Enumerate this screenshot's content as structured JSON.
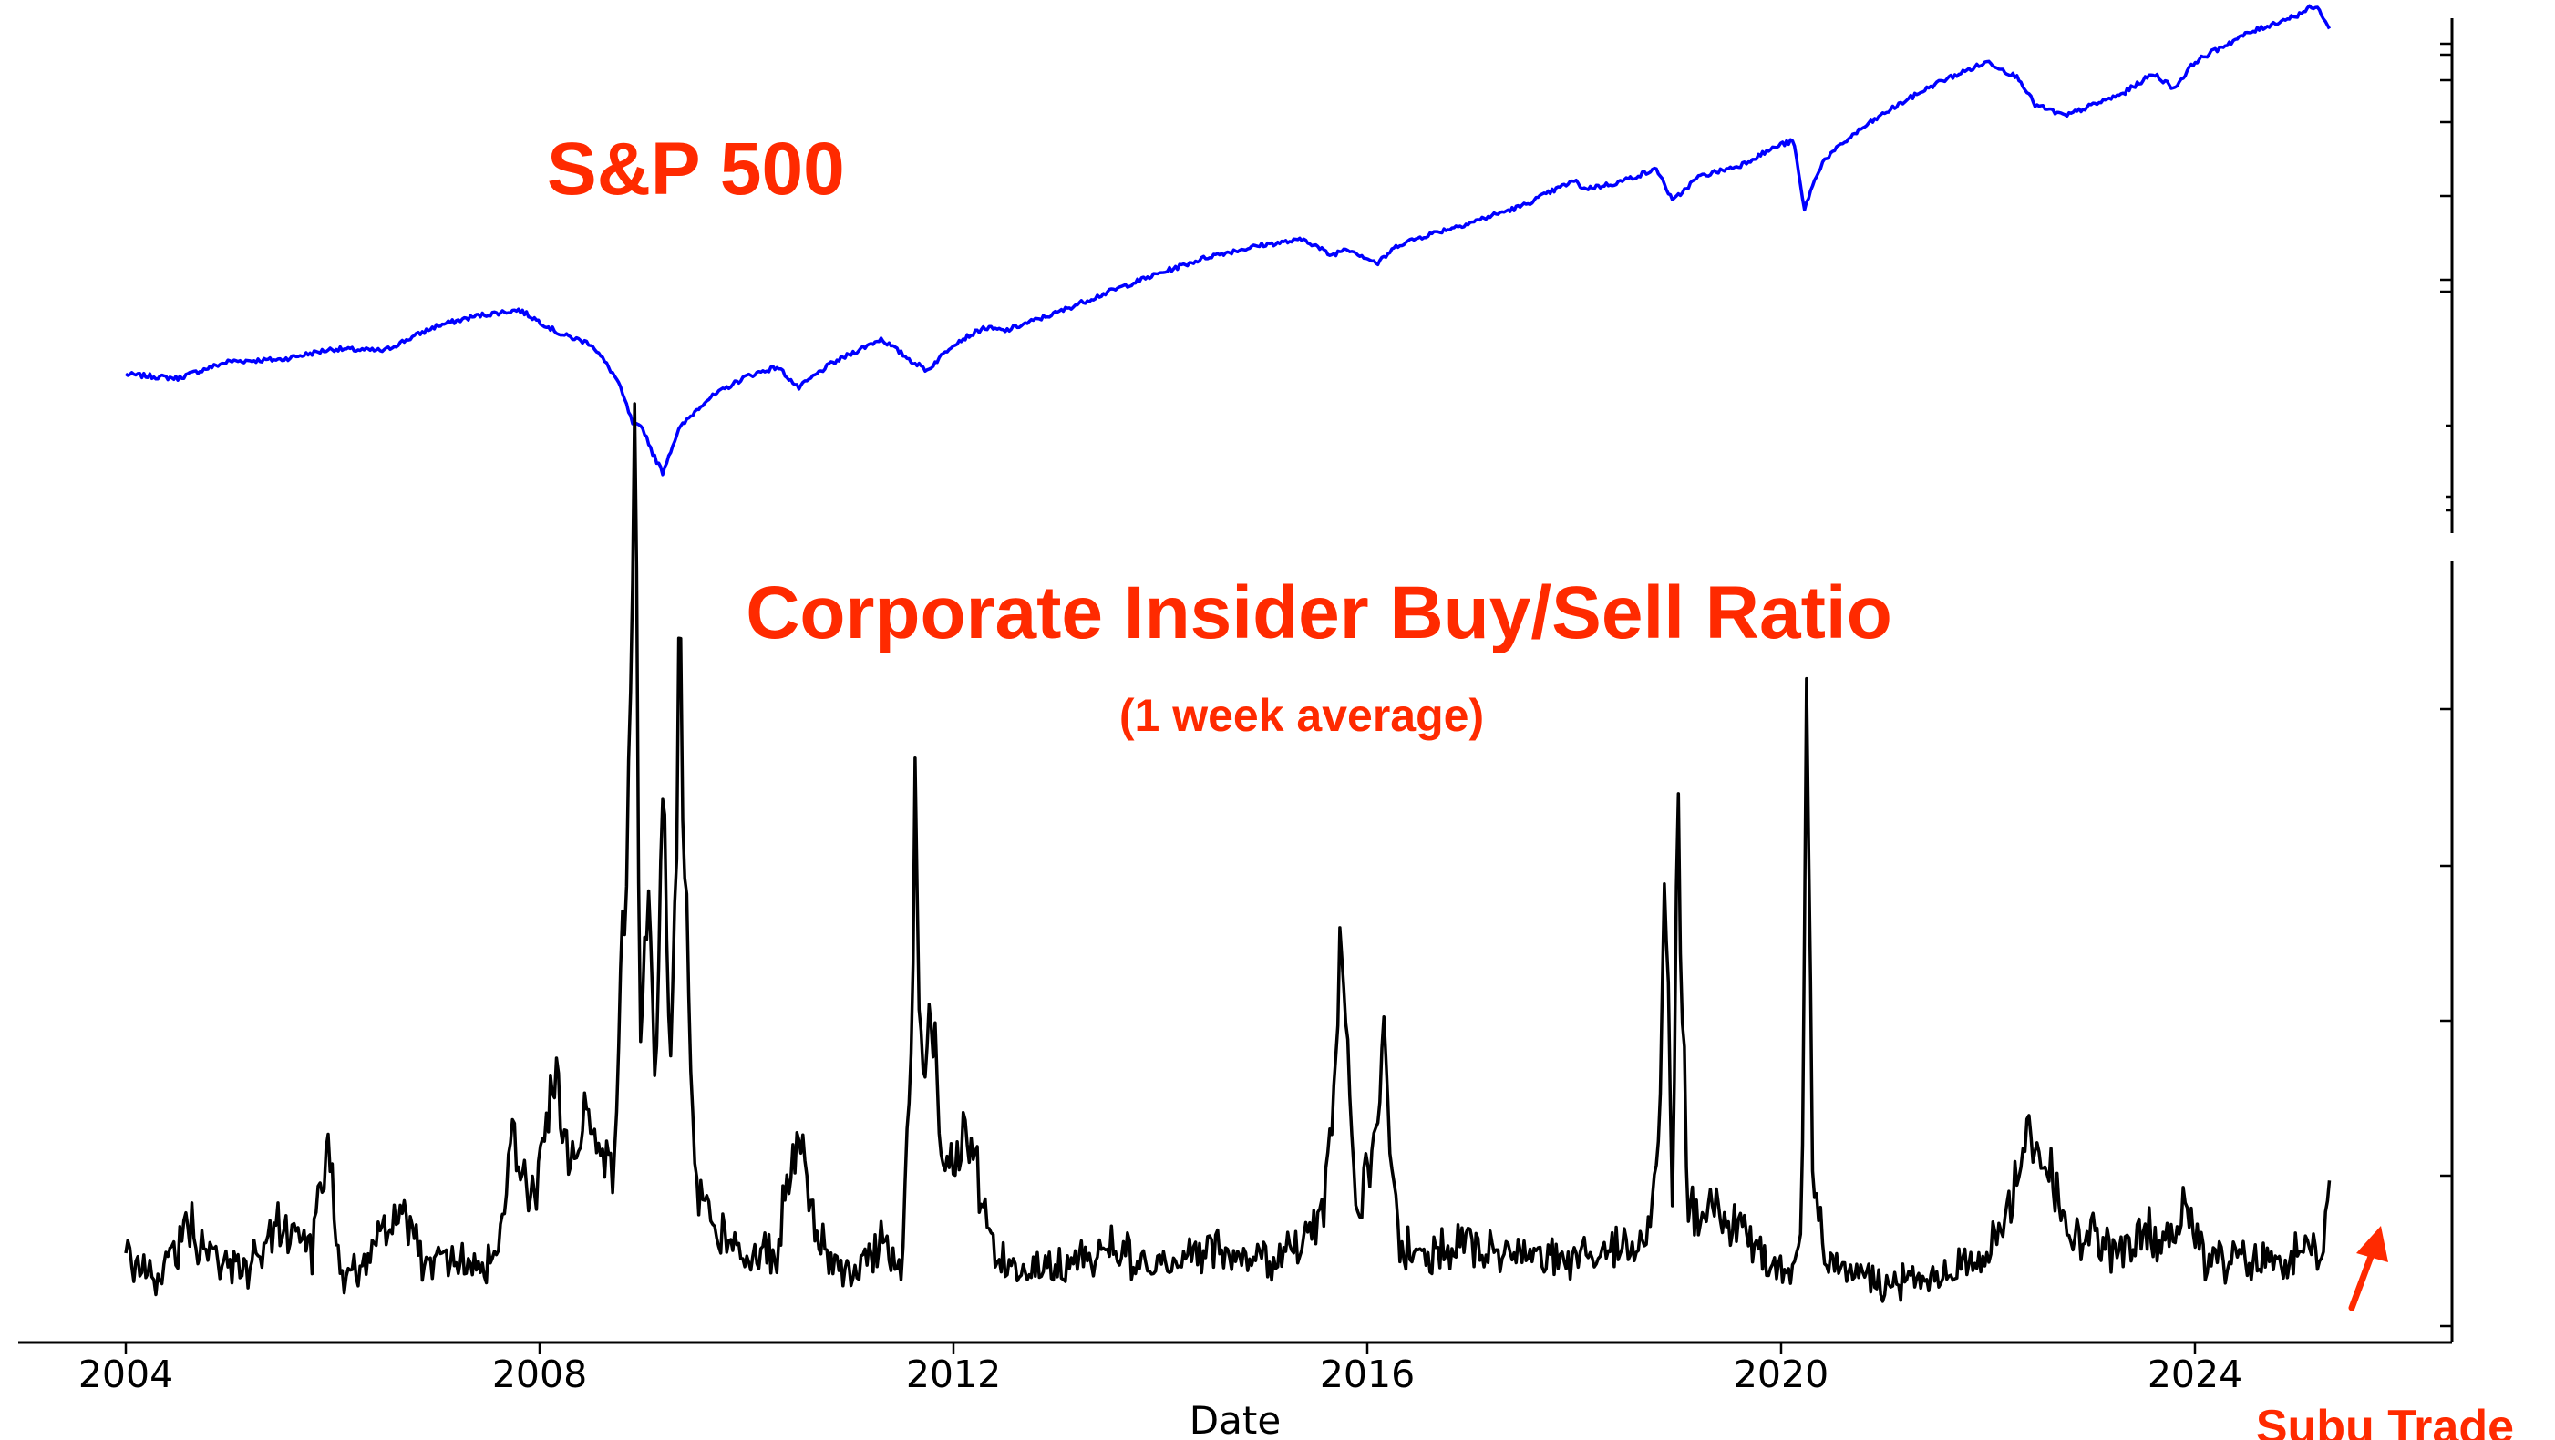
{
  "colors": {
    "title": "#ff2a00",
    "sp500_line": "#0000ff",
    "ratio_line": "#000000",
    "axis": "#000000"
  },
  "labels": {
    "sp500_title": "S&P 500",
    "ratio_title": "Corporate Insider Buy/Sell Ratio",
    "ratio_subtitle": "(1 week average)",
    "brand": "Subu Trade"
  },
  "chart_data": [
    {
      "type": "line",
      "title": "S&P 500",
      "y_scale": "log",
      "series": [
        {
          "name": "S&P 500",
          "x": [
            2004.0,
            2004.5,
            2005.0,
            2005.5,
            2006.0,
            2006.5,
            2007.0,
            2007.4,
            2007.8,
            2008.2,
            2008.5,
            2008.75,
            2008.9,
            2009.0,
            2009.1,
            2009.19,
            2009.35,
            2009.6,
            2010.0,
            2010.3,
            2010.5,
            2010.8,
            2011.3,
            2011.6,
            2011.75,
            2012.0,
            2012.3,
            2012.5,
            2013.0,
            2013.5,
            2014.0,
            2014.5,
            2015.0,
            2015.4,
            2015.65,
            2015.8,
            2016.1,
            2016.3,
            2016.6,
            2017.0,
            2017.5,
            2018.0,
            2018.1,
            2018.4,
            2018.8,
            2018.95,
            2019.2,
            2019.6,
            2020.0,
            2020.12,
            2020.22,
            2020.4,
            2020.7,
            2021.0,
            2021.5,
            2022.0,
            2022.3,
            2022.45,
            2022.75,
            2022.95,
            2023.3,
            2023.6,
            2023.8,
            2024.0,
            2024.5,
            2025.0,
            2025.12,
            2025.2,
            2025.3
          ],
          "y": [
            1130,
            1110,
            1200,
            1210,
            1270,
            1260,
            1410,
            1480,
            1520,
            1360,
            1300,
            1100,
            900,
            880,
            780,
            720,
            880,
            1000,
            1120,
            1170,
            1060,
            1180,
            1330,
            1200,
            1150,
            1300,
            1400,
            1380,
            1500,
            1650,
            1800,
            1950,
            2050,
            2100,
            1950,
            2020,
            1880,
            2050,
            2150,
            2270,
            2450,
            2750,
            2650,
            2720,
            2900,
            2500,
            2800,
            2950,
            3250,
            3300,
            2400,
            3000,
            3400,
            3750,
            4300,
            4750,
            4400,
            3900,
            3700,
            3850,
            4100,
            4500,
            4200,
            4750,
            5400,
            5900,
            6100,
            6050,
            5500
          ]
        }
      ]
    },
    {
      "type": "line",
      "title": "Corporate Insider Buy/Sell Ratio",
      "subtitle": "(1 week average)",
      "xlabel": "Date",
      "x_ticks": [
        2004,
        2008,
        2012,
        2016,
        2020,
        2024
      ],
      "series": [
        {
          "name": "Corporate Insider Buy/Sell Ratio",
          "x": [
            2004.0,
            2004.3,
            2004.6,
            2004.9,
            2005.2,
            2005.5,
            2005.8,
            2005.95,
            2006.1,
            2006.4,
            2006.6,
            2006.9,
            2007.2,
            2007.45,
            2007.6,
            2007.75,
            2007.9,
            2008.05,
            2008.15,
            2008.3,
            2008.45,
            2008.6,
            2008.72,
            2008.8,
            2008.86,
            2008.92,
            2008.98,
            2009.05,
            2009.12,
            2009.2,
            2009.26,
            2009.35,
            2009.5,
            2009.7,
            2010.0,
            2010.3,
            2010.5,
            2010.65,
            2010.8,
            2011.0,
            2011.3,
            2011.5,
            2011.6,
            2011.63,
            2011.7,
            2011.78,
            2011.9,
            2012.1,
            2012.4,
            2012.6,
            2013.0,
            2013.5,
            2014.0,
            2014.5,
            2015.0,
            2015.4,
            2015.6,
            2015.65,
            2015.75,
            2015.9,
            2016.05,
            2016.15,
            2016.3,
            2016.6,
            2017.0,
            2017.5,
            2018.0,
            2018.4,
            2018.7,
            2018.82,
            2018.88,
            2018.95,
            2019.0,
            2019.1,
            2019.3,
            2019.6,
            2019.9,
            2020.1,
            2020.2,
            2020.25,
            2020.3,
            2020.45,
            2020.7,
            2021.0,
            2021.5,
            2021.8,
            2022.0,
            2022.2,
            2022.4,
            2022.6,
            2022.8,
            2023.0,
            2023.3,
            2023.5,
            2023.7,
            2023.9,
            2024.1,
            2024.4,
            2024.7,
            2025.0,
            2025.2,
            2025.3
          ],
          "y": [
            0.48,
            0.32,
            0.68,
            0.45,
            0.4,
            0.72,
            0.52,
            1.18,
            0.35,
            0.52,
            0.8,
            0.42,
            0.48,
            0.38,
            0.55,
            1.28,
            0.75,
            1.25,
            1.6,
            1.0,
            1.4,
            1.25,
            0.9,
            2.5,
            3.35,
            5.75,
            1.8,
            2.7,
            1.5,
            3.4,
            1.4,
            4.3,
            0.9,
            0.7,
            0.45,
            0.55,
            1.3,
            0.65,
            0.45,
            0.4,
            0.6,
            0.3,
            2.1,
            3.4,
            1.5,
            2.25,
            0.9,
            1.25,
            0.55,
            0.45,
            0.4,
            0.55,
            0.4,
            0.55,
            0.45,
            0.55,
            0.9,
            1.4,
            2.45,
            0.85,
            1.15,
            1.85,
            0.55,
            0.5,
            0.55,
            0.5,
            0.45,
            0.55,
            0.55,
            1.3,
            2.95,
            0.8,
            3.3,
            0.75,
            0.85,
            0.65,
            0.45,
            0.35,
            0.7,
            4.85,
            0.85,
            0.45,
            0.4,
            0.3,
            0.35,
            0.45,
            0.5,
            0.75,
            1.3,
            1.0,
            0.55,
            0.6,
            0.45,
            0.65,
            0.55,
            0.85,
            0.45,
            0.45,
            0.45,
            0.5,
            0.45,
            0.8
          ]
        }
      ]
    }
  ]
}
